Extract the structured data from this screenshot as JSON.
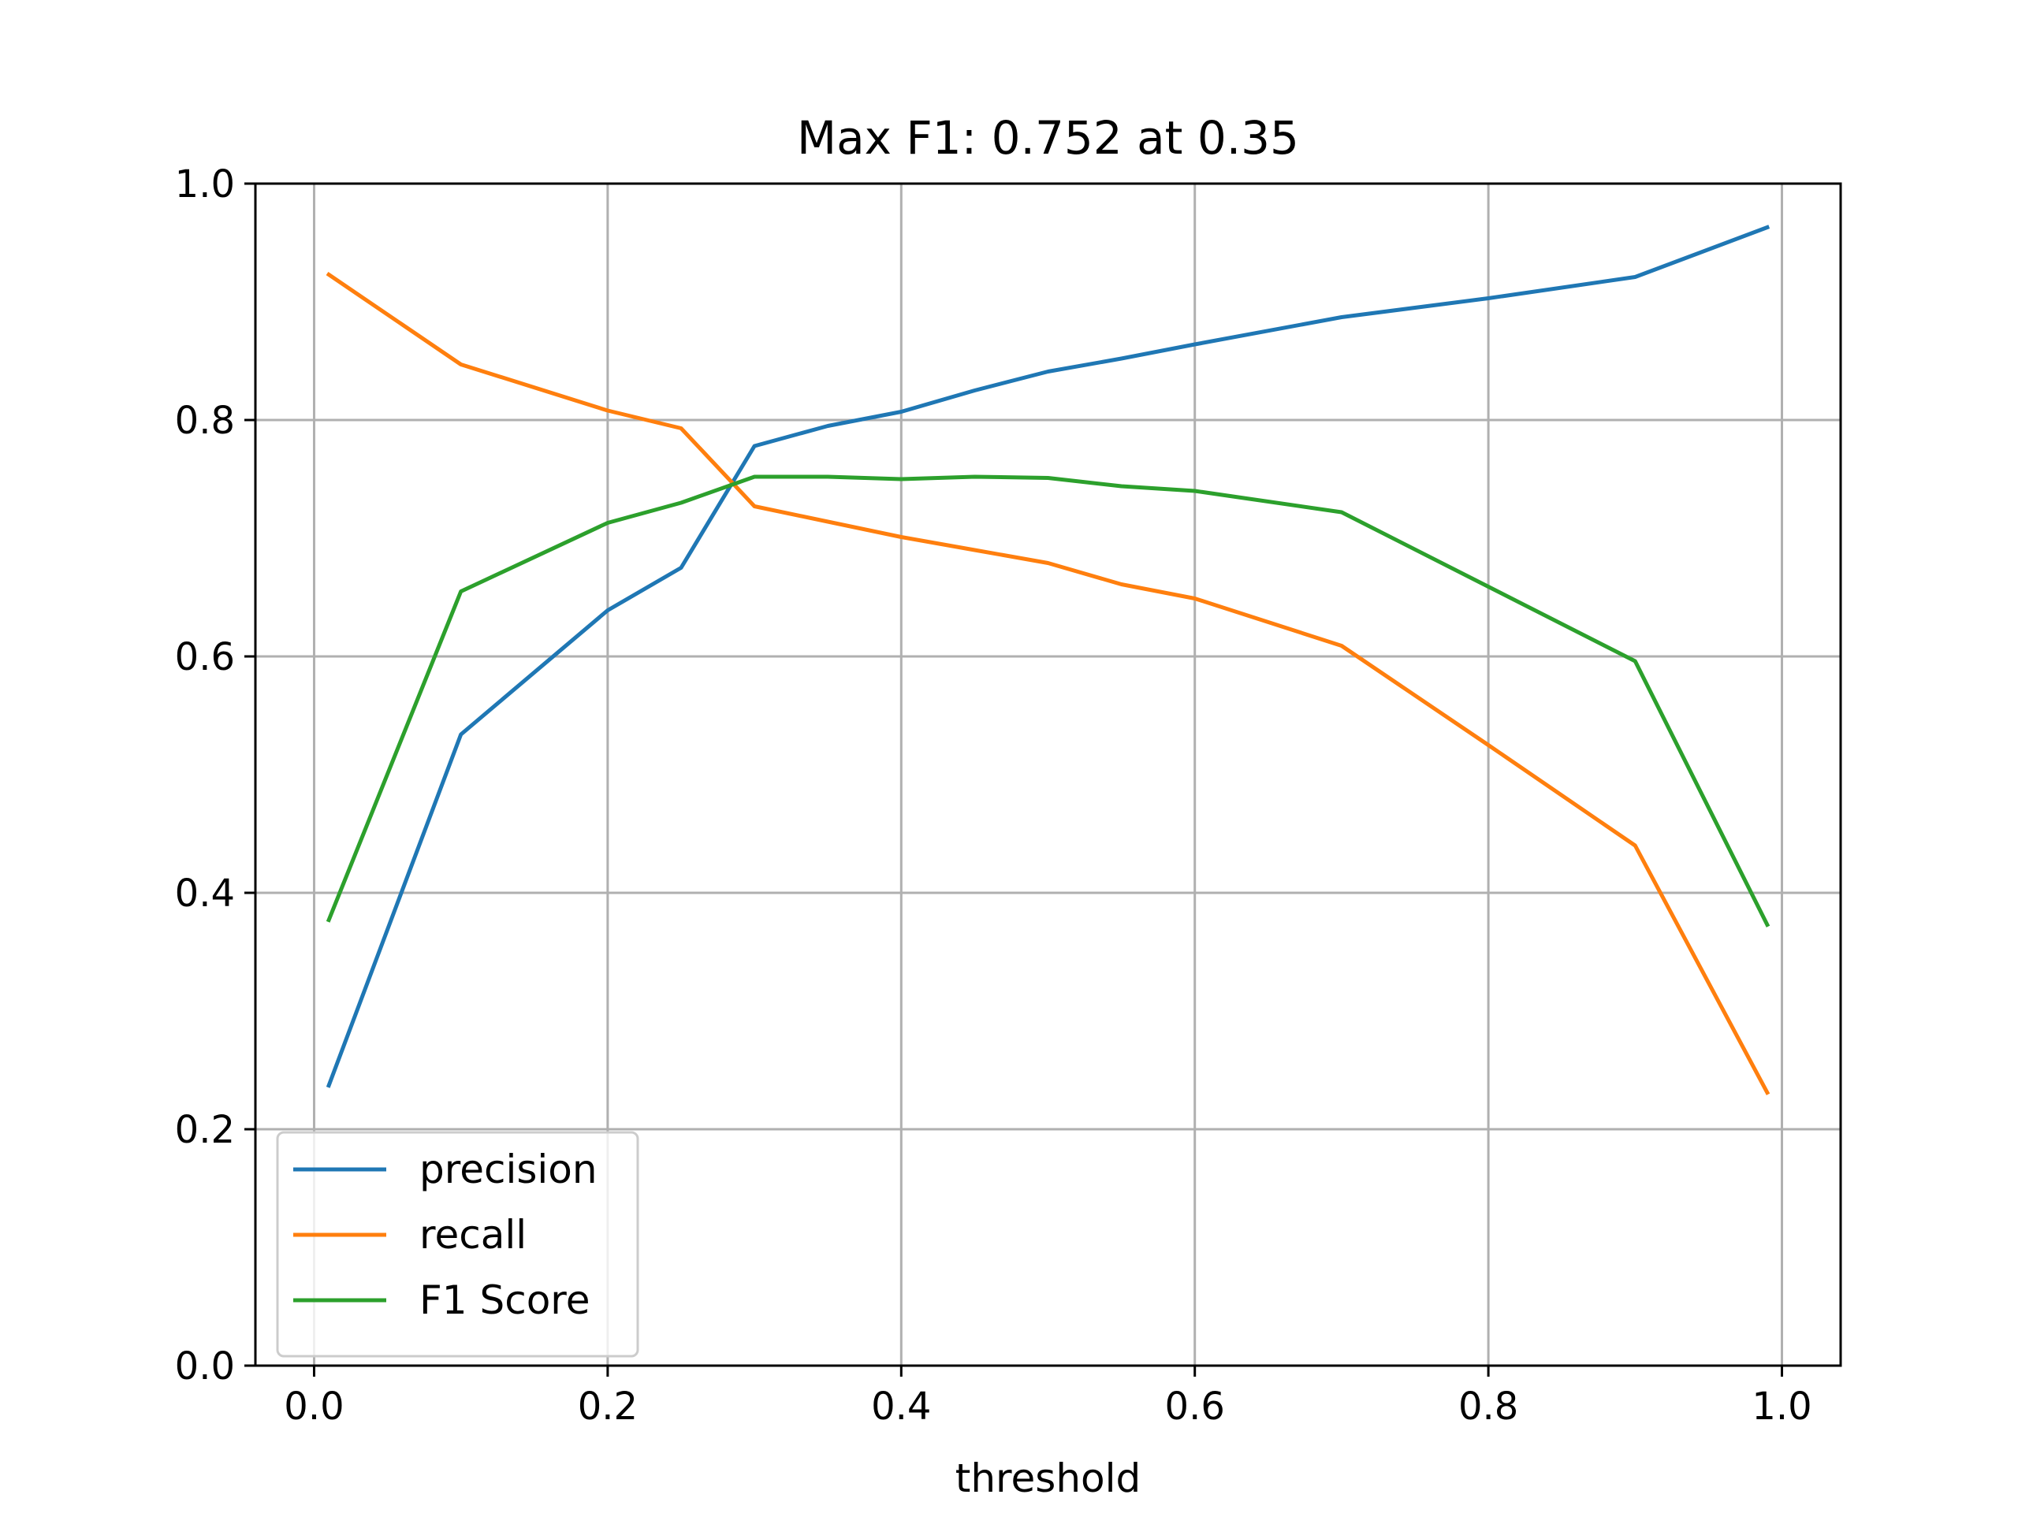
{
  "chart_data": {
    "type": "line",
    "title": "Max F1: 0.752 at 0.35",
    "xlabel": "threshold",
    "ylabel": "",
    "xlim": [
      -0.04,
      1.04
    ],
    "ylim": [
      0.0,
      1.0
    ],
    "xticks": [
      0.0,
      0.2,
      0.4,
      0.6,
      0.8,
      1.0
    ],
    "xtick_labels": [
      "0.0",
      "0.2",
      "0.4",
      "0.6",
      "0.8",
      "1.0"
    ],
    "yticks": [
      0.0,
      0.2,
      0.4,
      0.6,
      0.8,
      1.0
    ],
    "ytick_labels": [
      "0.0",
      "0.2",
      "0.4",
      "0.6",
      "0.8",
      "1.0"
    ],
    "grid": true,
    "legend_position": "lower-left",
    "x": [
      0.01,
      0.1,
      0.2,
      0.25,
      0.3,
      0.35,
      0.4,
      0.45,
      0.5,
      0.55,
      0.6,
      0.7,
      0.8,
      0.9,
      0.99
    ],
    "series": [
      {
        "name": "precision",
        "color": "#1f77b4",
        "values": [
          0.237,
          0.534,
          0.639,
          0.675,
          0.778,
          0.795,
          0.807,
          0.825,
          0.841,
          0.852,
          0.864,
          0.887,
          0.903,
          0.921,
          0.963
        ]
      },
      {
        "name": "recall",
        "color": "#ff7f0e",
        "values": [
          0.923,
          0.847,
          0.808,
          0.793,
          0.727,
          0.714,
          0.701,
          0.69,
          0.679,
          0.661,
          0.649,
          0.609,
          0.525,
          0.44,
          0.231
        ]
      },
      {
        "name": "F1 Score",
        "color": "#2ca02c",
        "values": [
          0.377,
          0.655,
          0.713,
          0.73,
          0.752,
          0.752,
          0.75,
          0.752,
          0.751,
          0.744,
          0.74,
          0.722,
          0.659,
          0.596,
          0.373
        ]
      }
    ]
  }
}
